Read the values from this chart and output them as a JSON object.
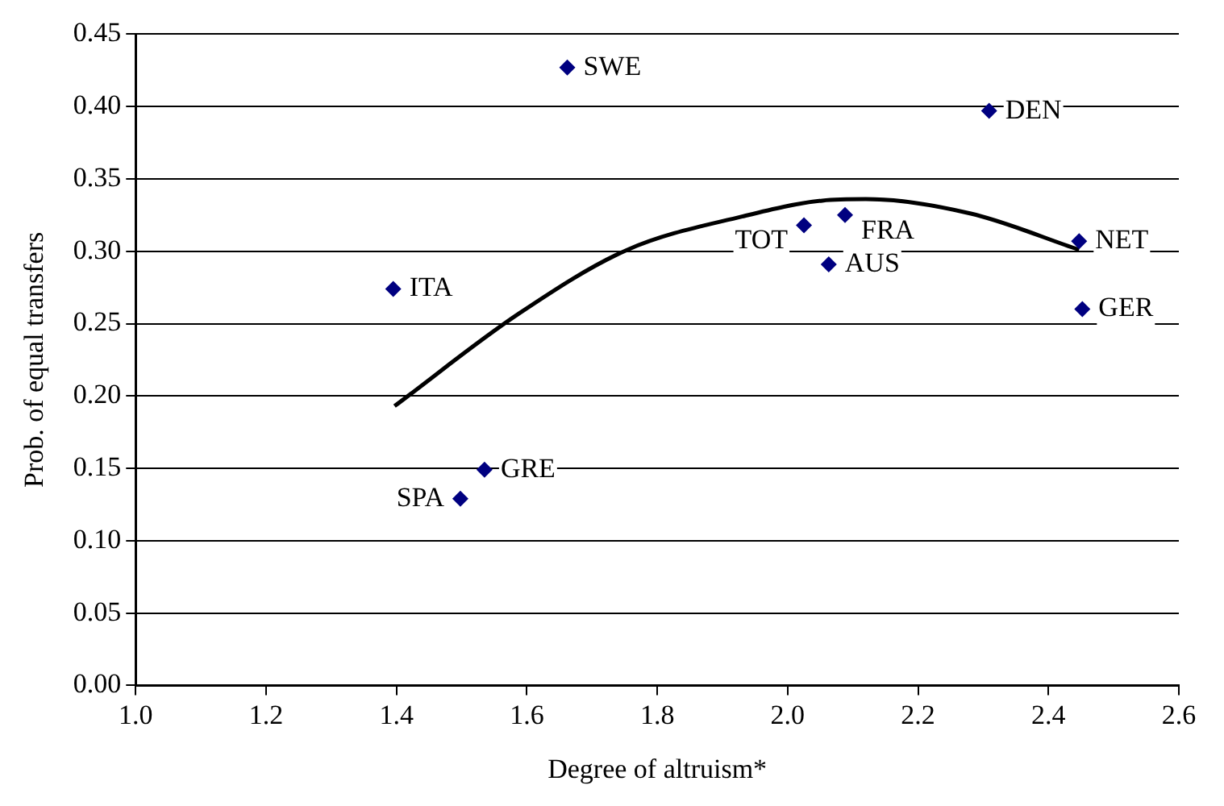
{
  "chart_data": {
    "type": "scatter",
    "xlabel": "Degree of altruism*",
    "ylabel": "Prob. of equal transfers",
    "series": [
      {
        "color": "#000080",
        "marker": "diamond",
        "x": [
          1.662,
          1.395,
          1.535,
          1.498,
          2.309,
          2.088,
          2.025,
          2.063,
          2.447,
          2.452
        ],
        "values": [
          0.427,
          0.274,
          0.149,
          0.129,
          0.397,
          0.325,
          0.318,
          0.291,
          0.307,
          0.26
        ]
      },
      {
        "type": "line",
        "marker": "none",
        "color": "#000000",
        "x": [
          1.397,
          1.588,
          1.754,
          1.93,
          2.053,
          2.12,
          2.281,
          2.447
        ],
        "values": [
          0.193,
          0.257,
          0.301,
          0.324,
          0.335,
          0.336,
          0.326,
          0.301
        ]
      }
    ],
    "annotations": [
      {
        "text": "SWE",
        "x": 1.662,
        "y": 0.427
      },
      {
        "text": "ITA",
        "x": 1.395,
        "y": 0.274
      },
      {
        "text": "GRE",
        "x": 1.535,
        "y": 0.149
      },
      {
        "text": "SPA",
        "x": 1.498,
        "y": 0.129
      },
      {
        "text": "DEN",
        "x": 2.309,
        "y": 0.397
      },
      {
        "text": "FRA",
        "x": 2.088,
        "y": 0.325
      },
      {
        "text": "TOT",
        "x": 2.025,
        "y": 0.318
      },
      {
        "text": "AUS",
        "x": 2.063,
        "y": 0.291
      },
      {
        "text": "NET",
        "x": 2.447,
        "y": 0.307
      },
      {
        "text": "GER",
        "x": 2.452,
        "y": 0.26
      }
    ],
    "xlim": [
      1,
      2.6
    ],
    "xticks": [
      {
        "value": 1,
        "label": "1.0"
      },
      {
        "value": 1.2,
        "label": "1.2"
      },
      {
        "value": 1.4,
        "label": "1.4"
      },
      {
        "value": 1.6,
        "label": "1.6"
      },
      {
        "value": 1.8,
        "label": "1.8"
      },
      {
        "value": 2,
        "label": "2.0"
      },
      {
        "value": 2.2,
        "label": "2.2"
      },
      {
        "value": 2.4,
        "label": "2.4"
      },
      {
        "value": 2.6,
        "label": "2.6"
      }
    ],
    "ylim": [
      0,
      0.45
    ],
    "yticks": [
      {
        "value": 0,
        "label": "0.00"
      },
      {
        "value": 0.05,
        "label": "0.05"
      },
      {
        "value": 0.1,
        "label": "0.10"
      },
      {
        "value": 0.15,
        "label": "0.15"
      },
      {
        "value": 0.2,
        "label": "0.20"
      },
      {
        "value": 0.25,
        "label": "0.25"
      },
      {
        "value": 0.3,
        "label": "0.30"
      },
      {
        "value": 0.35,
        "label": "0.35"
      },
      {
        "value": 0.4,
        "label": "0.40"
      },
      {
        "value": 0.45,
        "label": "0.45"
      }
    ],
    "grid": "y",
    "legend": false
  }
}
